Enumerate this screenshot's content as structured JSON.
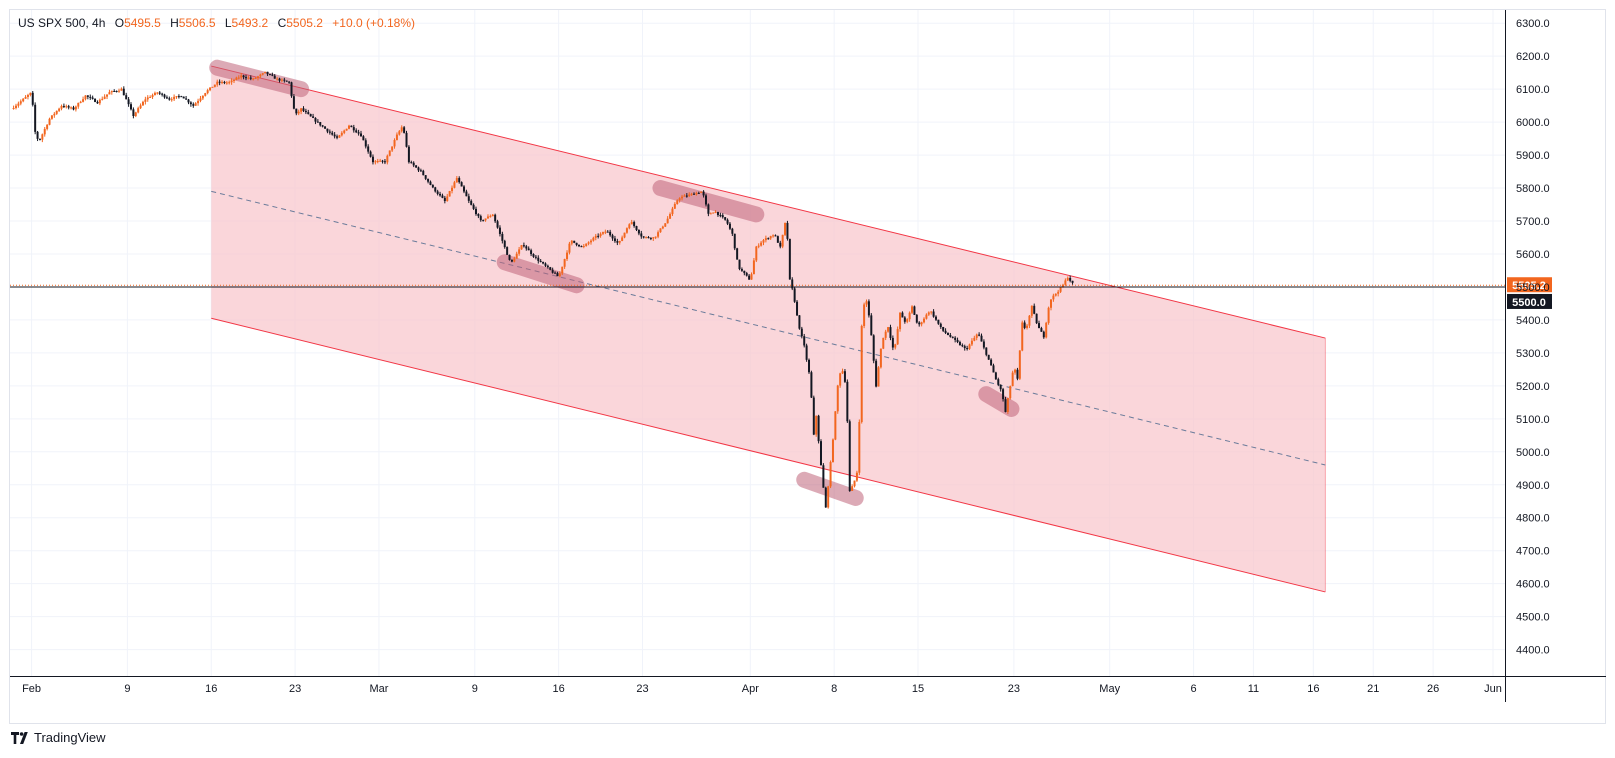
{
  "legend": {
    "symbol": "US SPX 500, 4h",
    "open_label": "O",
    "open": "5495.5",
    "high_label": "H",
    "high": "5506.5",
    "low_label": "L",
    "low": "5493.2",
    "close_label": "C",
    "close": "5505.2",
    "change": "+10.0 (+0.18%)"
  },
  "branding": {
    "name": "TradingView",
    "icon": "tradingview-logo-icon"
  },
  "colors": {
    "up": "#f2661f",
    "down": "#131722",
    "channel_line": "#f23645",
    "channel_fill": "#f8c5cb",
    "highlight": "#c0647a",
    "price_tag": "#f2661f",
    "level_tag": "#131722",
    "grid": "#f0f3fa"
  },
  "chart_data": {
    "type": "candlestick",
    "y_ticks": [
      "6300.0",
      "6200.0",
      "6100.0",
      "6000.0",
      "5900.0",
      "5800.0",
      "5700.0",
      "5600.0",
      "5500.0",
      "5400.0",
      "5300.0",
      "5200.0",
      "5100.0",
      "5000.0",
      "4900.0",
      "4800.0",
      "4700.0",
      "4600.0",
      "4500.0",
      "4400.0"
    ],
    "ylim": [
      4320,
      6340
    ],
    "x_tick_labels": [
      {
        "t": 0,
        "label": "Feb"
      },
      {
        "t": 8,
        "label": "9"
      },
      {
        "t": 15,
        "label": "16"
      },
      {
        "t": 22,
        "label": "23"
      },
      {
        "t": 29,
        "label": "Mar"
      },
      {
        "t": 37,
        "label": "9"
      },
      {
        "t": 44,
        "label": "16"
      },
      {
        "t": 51,
        "label": "23"
      },
      {
        "t": 60,
        "label": "Apr"
      },
      {
        "t": 67,
        "label": "8"
      },
      {
        "t": 74,
        "label": "15"
      },
      {
        "t": 82,
        "label": "23"
      },
      {
        "t": 90,
        "label": "May"
      },
      {
        "t": 97,
        "label": "6"
      },
      {
        "t": 102,
        "label": "11"
      },
      {
        "t": 107,
        "label": "16"
      },
      {
        "t": 112,
        "label": "21"
      },
      {
        "t": 117,
        "label": "26"
      },
      {
        "t": 122,
        "label": "Jun"
      }
    ],
    "xlim": [
      -1.8,
      123
    ],
    "current_price": 5505.2,
    "current_price_label": "5505.2",
    "level": 5500.0,
    "level_label": "5500.0",
    "price_path": [
      [
        -1.7,
        6040
      ],
      [
        -1,
        6060
      ],
      [
        0,
        6090
      ],
      [
        0.3,
        5970
      ],
      [
        0.6,
        5940
      ],
      [
        1.5,
        6010
      ],
      [
        2.5,
        6050
      ],
      [
        3.5,
        6040
      ],
      [
        4.5,
        6080
      ],
      [
        5.5,
        6060
      ],
      [
        6.5,
        6090
      ],
      [
        7.5,
        6100
      ],
      [
        8,
        6060
      ],
      [
        8.5,
        6020
      ],
      [
        9.5,
        6070
      ],
      [
        10.5,
        6090
      ],
      [
        11.5,
        6070
      ],
      [
        12.5,
        6080
      ],
      [
        13.5,
        6050
      ],
      [
        14.5,
        6090
      ],
      [
        15.5,
        6120
      ],
      [
        16.5,
        6120
      ],
      [
        17.5,
        6140
      ],
      [
        18.5,
        6130
      ],
      [
        19.5,
        6150
      ],
      [
        20.5,
        6130
      ],
      [
        21.5,
        6120
      ],
      [
        22,
        6020
      ],
      [
        22.5,
        6040
      ],
      [
        23.5,
        6010
      ],
      [
        24.5,
        5980
      ],
      [
        25.5,
        5950
      ],
      [
        26.5,
        5990
      ],
      [
        27.5,
        5960
      ],
      [
        28.5,
        5880
      ],
      [
        29.5,
        5880
      ],
      [
        30.5,
        5960
      ],
      [
        31,
        5990
      ],
      [
        31.5,
        5880
      ],
      [
        32.5,
        5850
      ],
      [
        33.5,
        5800
      ],
      [
        34.5,
        5760
      ],
      [
        35.5,
        5830
      ],
      [
        36.5,
        5760
      ],
      [
        37.5,
        5700
      ],
      [
        38.5,
        5720
      ],
      [
        39.5,
        5620
      ],
      [
        40,
        5570
      ],
      [
        41,
        5630
      ],
      [
        42,
        5590
      ],
      [
        43,
        5560
      ],
      [
        44,
        5530
      ],
      [
        45,
        5640
      ],
      [
        46,
        5620
      ],
      [
        47,
        5650
      ],
      [
        48,
        5670
      ],
      [
        49,
        5630
      ],
      [
        50,
        5700
      ],
      [
        51,
        5650
      ],
      [
        52,
        5650
      ],
      [
        53,
        5700
      ],
      [
        54,
        5770
      ],
      [
        55,
        5780
      ],
      [
        56,
        5790
      ],
      [
        56.5,
        5720
      ],
      [
        57,
        5730
      ],
      [
        58,
        5700
      ],
      [
        58.5,
        5660
      ],
      [
        59,
        5560
      ],
      [
        60,
        5520
      ],
      [
        60.5,
        5620
      ],
      [
        61,
        5640
      ],
      [
        62,
        5660
      ],
      [
        62.5,
        5620
      ],
      [
        63,
        5710
      ],
      [
        63.3,
        5520
      ],
      [
        63.6,
        5480
      ],
      [
        64,
        5390
      ],
      [
        64.5,
        5320
      ],
      [
        65,
        5220
      ],
      [
        65.3,
        5050
      ],
      [
        65.5,
        5110
      ],
      [
        66,
        4920
      ],
      [
        66.3,
        4830
      ],
      [
        66.8,
        5000
      ],
      [
        67.3,
        5200
      ],
      [
        67.6,
        5260
      ],
      [
        68,
        5200
      ],
      [
        68.3,
        4880
      ],
      [
        68.6,
        4900
      ],
      [
        69,
        4950
      ],
      [
        69.3,
        5380
      ],
      [
        69.6,
        5480
      ],
      [
        70,
        5390
      ],
      [
        70.5,
        5200
      ],
      [
        71,
        5340
      ],
      [
        71.5,
        5380
      ],
      [
        72,
        5300
      ],
      [
        72.5,
        5420
      ],
      [
        73,
        5390
      ],
      [
        73.5,
        5440
      ],
      [
        74,
        5380
      ],
      [
        75,
        5430
      ],
      [
        76,
        5370
      ],
      [
        77,
        5340
      ],
      [
        78,
        5310
      ],
      [
        79,
        5360
      ],
      [
        80,
        5270
      ],
      [
        80.5,
        5220
      ],
      [
        81,
        5180
      ],
      [
        81.3,
        5120
      ],
      [
        81.7,
        5200
      ],
      [
        82,
        5260
      ],
      [
        82.3,
        5220
      ],
      [
        82.7,
        5390
      ],
      [
        83,
        5370
      ],
      [
        83.5,
        5440
      ],
      [
        84,
        5380
      ],
      [
        84.5,
        5350
      ],
      [
        85,
        5460
      ],
      [
        85.5,
        5480
      ],
      [
        86,
        5500
      ],
      [
        86.5,
        5530
      ],
      [
        87,
        5505.2
      ]
    ],
    "channel": {
      "upper": {
        "x1": 15,
        "y1": 6170,
        "x2": 108,
        "y2": 5345
      },
      "lower": {
        "x1": 15,
        "y1": 5405,
        "x2": 108,
        "y2": 4575
      },
      "middle": {
        "x1": 15,
        "y1": 5790,
        "x2": 108,
        "y2": 4960
      }
    },
    "highlights": [
      {
        "x1": 15.5,
        "y1": 6165,
        "x2": 22.5,
        "y2": 6100
      },
      {
        "x1": 52.5,
        "y1": 5800,
        "x2": 60.5,
        "y2": 5720
      },
      {
        "x1": 39.5,
        "y1": 5575,
        "x2": 45.5,
        "y2": 5505
      },
      {
        "x1": 64.5,
        "y1": 4915,
        "x2": 68.8,
        "y2": 4860
      },
      {
        "x1": 79.7,
        "y1": 5175,
        "x2": 81.8,
        "y2": 5130
      }
    ]
  }
}
